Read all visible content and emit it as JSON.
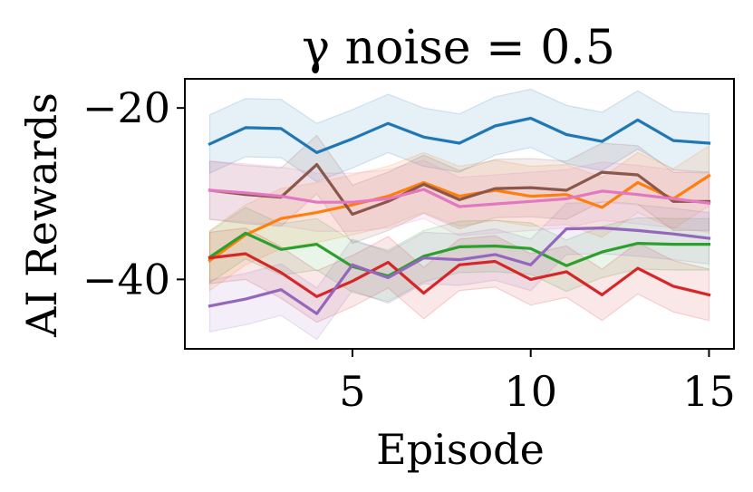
{
  "chart_data": {
    "type": "line",
    "title": "γ noise = 0.5",
    "xlabel": "Episode",
    "ylabel": "AI Rewards",
    "xlim": [
      0.3,
      15.7
    ],
    "ylim": [
      -48.1,
      -16.6
    ],
    "xticks": [
      5,
      10,
      15
    ],
    "xtick_labels": [
      "5",
      "10",
      "15"
    ],
    "yticks": [
      -20,
      -40
    ],
    "ytick_labels": [
      "−20",
      "−40"
    ],
    "grid": false,
    "legend": "none",
    "x": [
      1,
      2,
      3,
      4,
      5,
      6,
      7,
      8,
      9,
      10,
      11,
      12,
      13,
      14,
      15
    ],
    "series": [
      {
        "name": "blue",
        "color": "#1f77b4",
        "values": [
          -24.2,
          -22.3,
          -22.4,
          -25.2,
          -23.6,
          -21.8,
          -23.4,
          -24.1,
          -22.1,
          -21.2,
          -23.1,
          -23.9,
          -21.4,
          -23.8,
          -24.1
        ],
        "band": 3.4
      },
      {
        "name": "orange",
        "color": "#ff7f0e",
        "values": [
          -37.8,
          -34.8,
          -32.9,
          -32.2,
          -31.3,
          -30.3,
          -28.7,
          -30.3,
          -29.6,
          -30.3,
          -30.1,
          -31.6,
          -28.7,
          -30.6,
          -27.9
        ],
        "band": 3.5
      },
      {
        "name": "green",
        "color": "#2ca02c",
        "values": [
          -37.4,
          -34.6,
          -36.5,
          -35.9,
          -38.5,
          -39.6,
          -37.3,
          -36.2,
          -36.1,
          -36.4,
          -38.4,
          -36.8,
          -35.8,
          -35.9,
          -35.9
        ],
        "band": 3.0
      },
      {
        "name": "red",
        "color": "#d62728",
        "values": [
          -37.5,
          -37.0,
          -39.2,
          -42.0,
          -40.2,
          -38.0,
          -41.6,
          -38.3,
          -37.9,
          -40.0,
          -39.1,
          -41.8,
          -38.7,
          -40.8,
          -41.8
        ],
        "band": 3.0
      },
      {
        "name": "purple",
        "color": "#9467bd",
        "values": [
          -43.1,
          -42.3,
          -41.2,
          -44.0,
          -38.3,
          -39.8,
          -37.5,
          -37.7,
          -37.1,
          -38.3,
          -34.1,
          -34.0,
          -34.3,
          -34.7,
          -35.2
        ],
        "band": 3.0
      },
      {
        "name": "brown",
        "color": "#8c564b",
        "values": [
          -29.6,
          -30.1,
          -30.4,
          -26.6,
          -32.4,
          -30.9,
          -28.9,
          -30.7,
          -29.4,
          -29.3,
          -29.6,
          -27.5,
          -27.8,
          -30.9,
          -30.9
        ],
        "band": 3.4
      },
      {
        "name": "pink",
        "color": "#e377c2",
        "values": [
          -29.6,
          -29.9,
          -30.3,
          -31.0,
          -31.0,
          -30.6,
          -29.5,
          -31.5,
          -31.2,
          -30.9,
          -30.6,
          -29.7,
          -30.1,
          -30.6,
          -31.1
        ],
        "band": 3.4
      }
    ]
  }
}
